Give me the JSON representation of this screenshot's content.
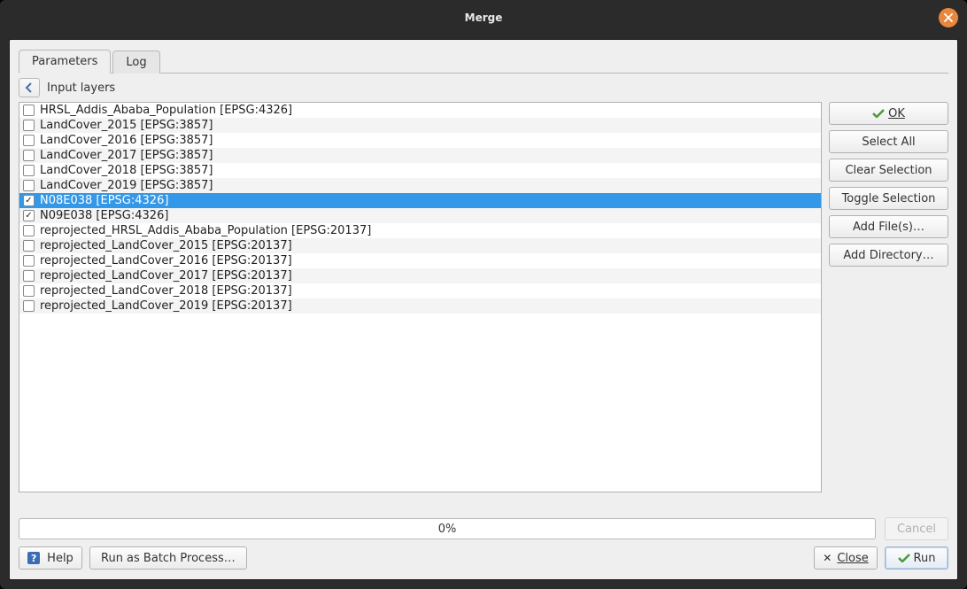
{
  "window": {
    "title": "Merge"
  },
  "tabs": {
    "parameters": "Parameters",
    "log": "Log"
  },
  "nav": {
    "label": "Input layers"
  },
  "layers": [
    {
      "label": "HRSL_Addis_Ababa_Population [EPSG:4326]",
      "checked": false,
      "selected": false
    },
    {
      "label": "LandCover_2015 [EPSG:3857]",
      "checked": false,
      "selected": false
    },
    {
      "label": "LandCover_2016 [EPSG:3857]",
      "checked": false,
      "selected": false
    },
    {
      "label": "LandCover_2017 [EPSG:3857]",
      "checked": false,
      "selected": false
    },
    {
      "label": "LandCover_2018 [EPSG:3857]",
      "checked": false,
      "selected": false
    },
    {
      "label": "LandCover_2019 [EPSG:3857]",
      "checked": false,
      "selected": false
    },
    {
      "label": "N08E038 [EPSG:4326]",
      "checked": true,
      "selected": true
    },
    {
      "label": "N09E038 [EPSG:4326]",
      "checked": true,
      "selected": false
    },
    {
      "label": "reprojected_HRSL_Addis_Ababa_Population [EPSG:20137]",
      "checked": false,
      "selected": false
    },
    {
      "label": "reprojected_LandCover_2015 [EPSG:20137]",
      "checked": false,
      "selected": false
    },
    {
      "label": "reprojected_LandCover_2016 [EPSG:20137]",
      "checked": false,
      "selected": false
    },
    {
      "label": "reprojected_LandCover_2017 [EPSG:20137]",
      "checked": false,
      "selected": false
    },
    {
      "label": "reprojected_LandCover_2018 [EPSG:20137]",
      "checked": false,
      "selected": false
    },
    {
      "label": "reprojected_LandCover_2019 [EPSG:20137]",
      "checked": false,
      "selected": false
    }
  ],
  "side": {
    "ok": "OK",
    "select_all": "Select All",
    "clear_selection": "Clear Selection",
    "toggle_selection": "Toggle Selection",
    "add_files": "Add File(s)…",
    "add_directory": "Add Directory…"
  },
  "progress": {
    "text": "0%",
    "cancel": "Cancel"
  },
  "footer": {
    "help": "Help",
    "batch": "Run as Batch Process…",
    "close": "Close",
    "run": "Run"
  },
  "colors": {
    "selection": "#3498e8",
    "titlebar": "#2b2b2b",
    "dialog_bg": "#efefef",
    "close_btn": "#e9873c"
  }
}
